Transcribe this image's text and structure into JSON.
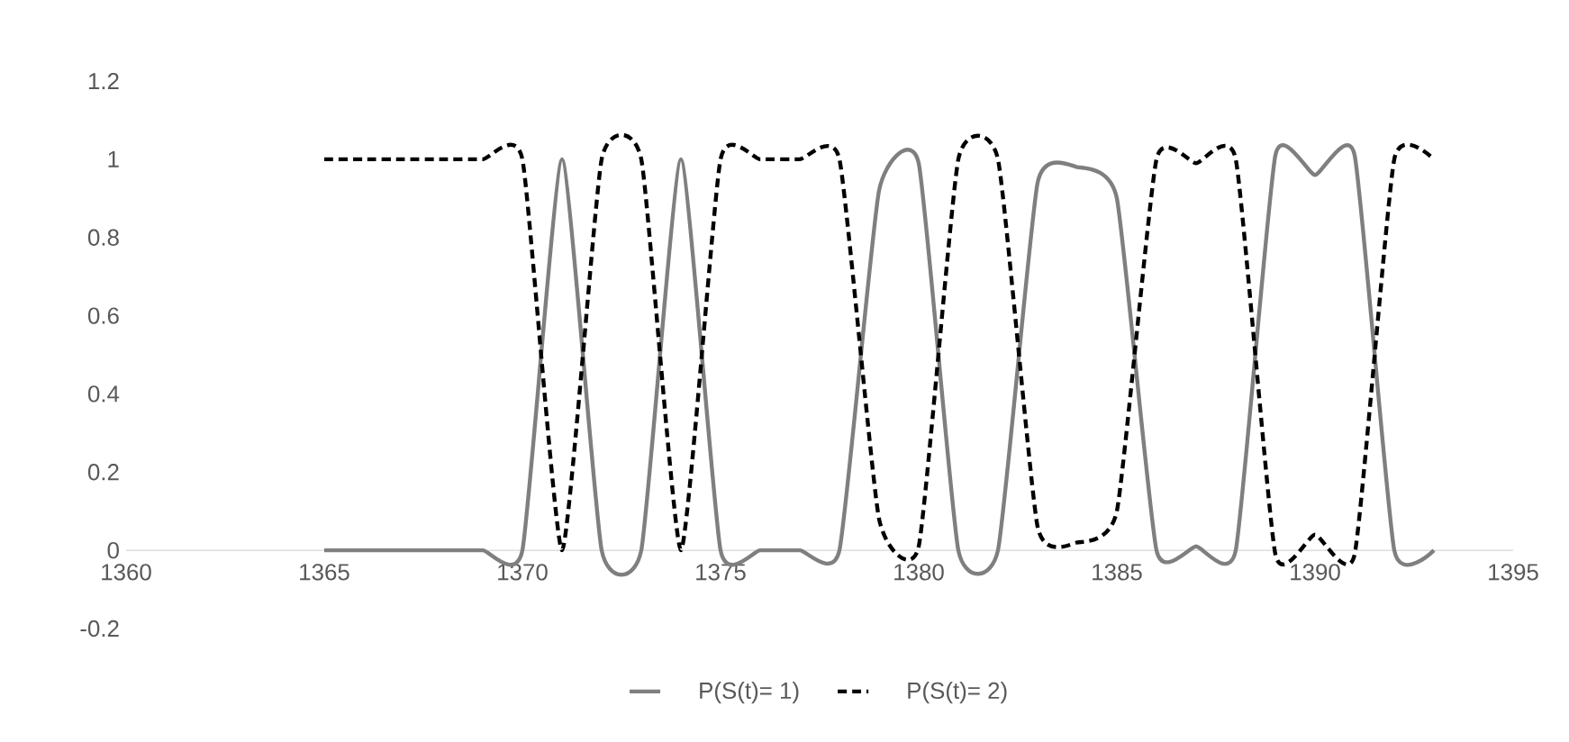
{
  "chart_data": {
    "type": "line",
    "x": [
      1365,
      1366,
      1367,
      1368,
      1369,
      1370,
      1371,
      1372,
      1373,
      1374,
      1375,
      1376,
      1377,
      1378,
      1379,
      1380,
      1381,
      1382,
      1383,
      1384,
      1385,
      1386,
      1387,
      1388,
      1389,
      1390,
      1391,
      1392,
      1393
    ],
    "series": [
      {
        "name": "P(S(t)= 1)",
        "color": "#7f7f7f",
        "line_style": "solid",
        "values": [
          0,
          0,
          0,
          0,
          0,
          0,
          1,
          0,
          0,
          1,
          0,
          0,
          0,
          0,
          0.92,
          0.99,
          0,
          0,
          0.94,
          0.98,
          0.9,
          0,
          0.01,
          0,
          1.01,
          0.96,
          1.01,
          0,
          0
        ]
      },
      {
        "name": "P(S(t)= 2)",
        "color": "#000000",
        "line_style": "dashed",
        "values": [
          1,
          1,
          1,
          1,
          1,
          1,
          0,
          1,
          1,
          0,
          1,
          1,
          1,
          1,
          0.08,
          0.01,
          1,
          1,
          0.06,
          0.02,
          0.1,
          1,
          0.99,
          1,
          -0.01,
          0.04,
          -0.01,
          1,
          1
        ]
      }
    ],
    "xlim": [
      1360,
      1395
    ],
    "xticks": [
      1360,
      1365,
      1370,
      1375,
      1380,
      1385,
      1390,
      1395
    ],
    "ylim": [
      -0.2,
      1.2
    ],
    "yticks": [
      {
        "value": -0.2,
        "label": "-0.2"
      },
      {
        "value": 0,
        "label": "0"
      },
      {
        "value": 0.2,
        "label": "0.2"
      },
      {
        "value": 0.4,
        "label": "0.4"
      },
      {
        "value": 0.6,
        "label": "0.6"
      },
      {
        "value": 0.8,
        "label": "0.8"
      },
      {
        "value": 1,
        "label": "1"
      },
      {
        "value": 1.2,
        "label": "1.2"
      }
    ],
    "grid": false,
    "legend": "bottom",
    "marker": "none"
  }
}
